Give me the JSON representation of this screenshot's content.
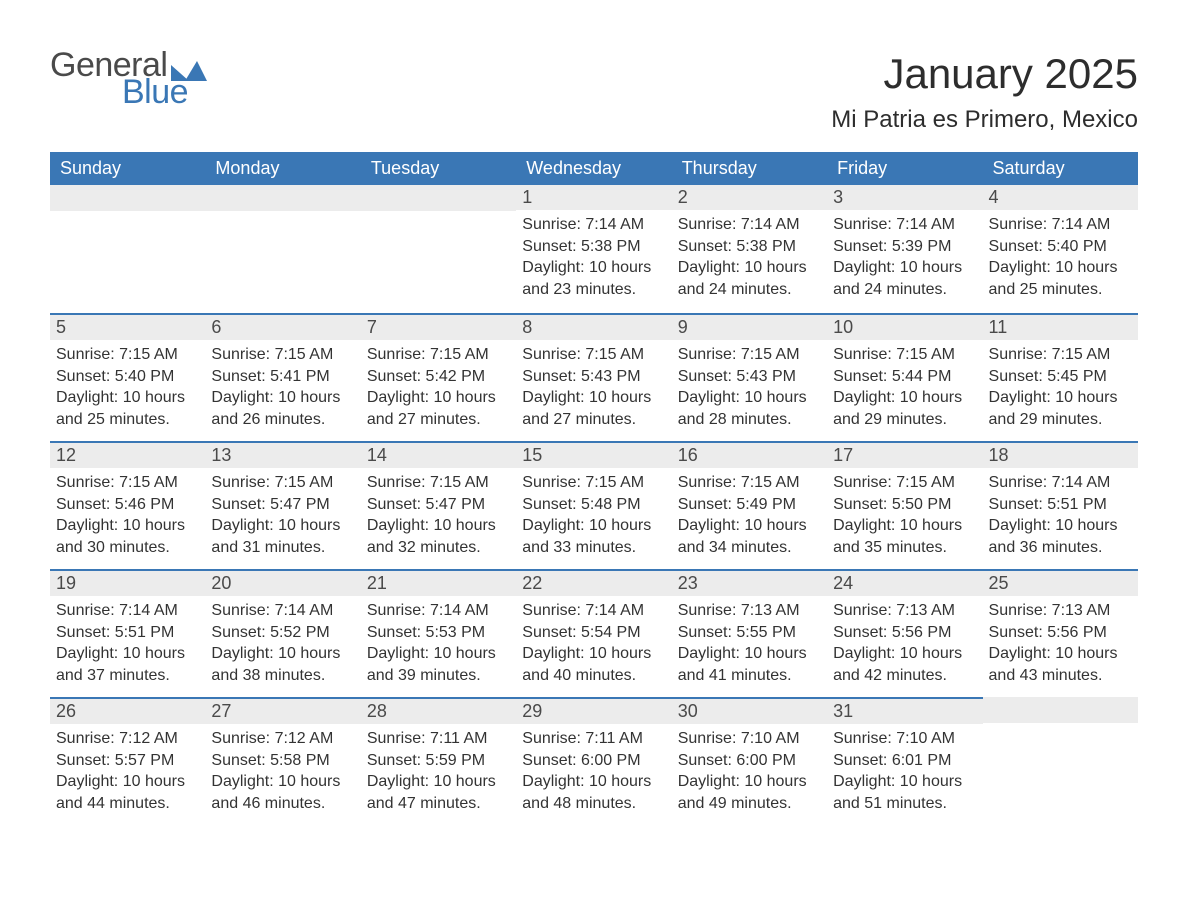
{
  "logo": {
    "text_general": "General",
    "text_blue": "Blue",
    "mark_color": "#3a77b5",
    "general_color": "#4a4a4a"
  },
  "title": "January 2025",
  "location": "Mi Patria es Primero, Mexico",
  "colors": {
    "header_bg": "#3a77b5",
    "header_text": "#ffffff",
    "row_accent": "#3a77b5",
    "day_number_bg": "#ececec",
    "body_text": "#333333",
    "page_bg": "#ffffff"
  },
  "day_labels": [
    "Sunday",
    "Monday",
    "Tuesday",
    "Wednesday",
    "Thursday",
    "Friday",
    "Saturday"
  ],
  "weeks": [
    [
      null,
      null,
      null,
      {
        "n": "1",
        "sunrise": "7:14 AM",
        "sunset": "5:38 PM",
        "daylight_l1": "Daylight: 10 hours",
        "daylight_l2": "and 23 minutes."
      },
      {
        "n": "2",
        "sunrise": "7:14 AM",
        "sunset": "5:38 PM",
        "daylight_l1": "Daylight: 10 hours",
        "daylight_l2": "and 24 minutes."
      },
      {
        "n": "3",
        "sunrise": "7:14 AM",
        "sunset": "5:39 PM",
        "daylight_l1": "Daylight: 10 hours",
        "daylight_l2": "and 24 minutes."
      },
      {
        "n": "4",
        "sunrise": "7:14 AM",
        "sunset": "5:40 PM",
        "daylight_l1": "Daylight: 10 hours",
        "daylight_l2": "and 25 minutes."
      }
    ],
    [
      {
        "n": "5",
        "sunrise": "7:15 AM",
        "sunset": "5:40 PM",
        "daylight_l1": "Daylight: 10 hours",
        "daylight_l2": "and 25 minutes."
      },
      {
        "n": "6",
        "sunrise": "7:15 AM",
        "sunset": "5:41 PM",
        "daylight_l1": "Daylight: 10 hours",
        "daylight_l2": "and 26 minutes."
      },
      {
        "n": "7",
        "sunrise": "7:15 AM",
        "sunset": "5:42 PM",
        "daylight_l1": "Daylight: 10 hours",
        "daylight_l2": "and 27 minutes."
      },
      {
        "n": "8",
        "sunrise": "7:15 AM",
        "sunset": "5:43 PM",
        "daylight_l1": "Daylight: 10 hours",
        "daylight_l2": "and 27 minutes."
      },
      {
        "n": "9",
        "sunrise": "7:15 AM",
        "sunset": "5:43 PM",
        "daylight_l1": "Daylight: 10 hours",
        "daylight_l2": "and 28 minutes."
      },
      {
        "n": "10",
        "sunrise": "7:15 AM",
        "sunset": "5:44 PM",
        "daylight_l1": "Daylight: 10 hours",
        "daylight_l2": "and 29 minutes."
      },
      {
        "n": "11",
        "sunrise": "7:15 AM",
        "sunset": "5:45 PM",
        "daylight_l1": "Daylight: 10 hours",
        "daylight_l2": "and 29 minutes."
      }
    ],
    [
      {
        "n": "12",
        "sunrise": "7:15 AM",
        "sunset": "5:46 PM",
        "daylight_l1": "Daylight: 10 hours",
        "daylight_l2": "and 30 minutes."
      },
      {
        "n": "13",
        "sunrise": "7:15 AM",
        "sunset": "5:47 PM",
        "daylight_l1": "Daylight: 10 hours",
        "daylight_l2": "and 31 minutes."
      },
      {
        "n": "14",
        "sunrise": "7:15 AM",
        "sunset": "5:47 PM",
        "daylight_l1": "Daylight: 10 hours",
        "daylight_l2": "and 32 minutes."
      },
      {
        "n": "15",
        "sunrise": "7:15 AM",
        "sunset": "5:48 PM",
        "daylight_l1": "Daylight: 10 hours",
        "daylight_l2": "and 33 minutes."
      },
      {
        "n": "16",
        "sunrise": "7:15 AM",
        "sunset": "5:49 PM",
        "daylight_l1": "Daylight: 10 hours",
        "daylight_l2": "and 34 minutes."
      },
      {
        "n": "17",
        "sunrise": "7:15 AM",
        "sunset": "5:50 PM",
        "daylight_l1": "Daylight: 10 hours",
        "daylight_l2": "and 35 minutes."
      },
      {
        "n": "18",
        "sunrise": "7:14 AM",
        "sunset": "5:51 PM",
        "daylight_l1": "Daylight: 10 hours",
        "daylight_l2": "and 36 minutes."
      }
    ],
    [
      {
        "n": "19",
        "sunrise": "7:14 AM",
        "sunset": "5:51 PM",
        "daylight_l1": "Daylight: 10 hours",
        "daylight_l2": "and 37 minutes."
      },
      {
        "n": "20",
        "sunrise": "7:14 AM",
        "sunset": "5:52 PM",
        "daylight_l1": "Daylight: 10 hours",
        "daylight_l2": "and 38 minutes."
      },
      {
        "n": "21",
        "sunrise": "7:14 AM",
        "sunset": "5:53 PM",
        "daylight_l1": "Daylight: 10 hours",
        "daylight_l2": "and 39 minutes."
      },
      {
        "n": "22",
        "sunrise": "7:14 AM",
        "sunset": "5:54 PM",
        "daylight_l1": "Daylight: 10 hours",
        "daylight_l2": "and 40 minutes."
      },
      {
        "n": "23",
        "sunrise": "7:13 AM",
        "sunset": "5:55 PM",
        "daylight_l1": "Daylight: 10 hours",
        "daylight_l2": "and 41 minutes."
      },
      {
        "n": "24",
        "sunrise": "7:13 AM",
        "sunset": "5:56 PM",
        "daylight_l1": "Daylight: 10 hours",
        "daylight_l2": "and 42 minutes."
      },
      {
        "n": "25",
        "sunrise": "7:13 AM",
        "sunset": "5:56 PM",
        "daylight_l1": "Daylight: 10 hours",
        "daylight_l2": "and 43 minutes."
      }
    ],
    [
      {
        "n": "26",
        "sunrise": "7:12 AM",
        "sunset": "5:57 PM",
        "daylight_l1": "Daylight: 10 hours",
        "daylight_l2": "and 44 minutes."
      },
      {
        "n": "27",
        "sunrise": "7:12 AM",
        "sunset": "5:58 PM",
        "daylight_l1": "Daylight: 10 hours",
        "daylight_l2": "and 46 minutes."
      },
      {
        "n": "28",
        "sunrise": "7:11 AM",
        "sunset": "5:59 PM",
        "daylight_l1": "Daylight: 10 hours",
        "daylight_l2": "and 47 minutes."
      },
      {
        "n": "29",
        "sunrise": "7:11 AM",
        "sunset": "6:00 PM",
        "daylight_l1": "Daylight: 10 hours",
        "daylight_l2": "and 48 minutes."
      },
      {
        "n": "30",
        "sunrise": "7:10 AM",
        "sunset": "6:00 PM",
        "daylight_l1": "Daylight: 10 hours",
        "daylight_l2": "and 49 minutes."
      },
      {
        "n": "31",
        "sunrise": "7:10 AM",
        "sunset": "6:01 PM",
        "daylight_l1": "Daylight: 10 hours",
        "daylight_l2": "and 51 minutes."
      },
      null
    ]
  ],
  "labels": {
    "sunrise_prefix": "Sunrise: ",
    "sunset_prefix": "Sunset: "
  }
}
